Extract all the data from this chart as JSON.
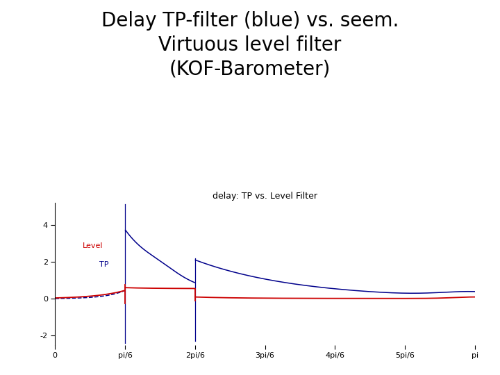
{
  "main_title": "Delay TP-filter (blue) vs. seem.\nVirtuous level filter\n(KOF-Barometer)",
  "chart_title": "delay: TP vs. Level Filter",
  "main_title_fontsize": 20,
  "chart_title_fontsize": 9,
  "background_color": "#ffffff",
  "tp_color": "#00008B",
  "level_color": "#CC0000",
  "ylim": [
    -2.5,
    5.2
  ],
  "xlim": [
    0,
    3.14159265
  ],
  "yticks": [
    -2,
    0,
    2,
    4
  ],
  "xtick_labels": [
    "0",
    "pi/6",
    "2pi/6",
    "3pi/6",
    "4pi/6",
    "5pi/6",
    "pi"
  ],
  "legend_level": "Level",
  "legend_tp": "TP"
}
